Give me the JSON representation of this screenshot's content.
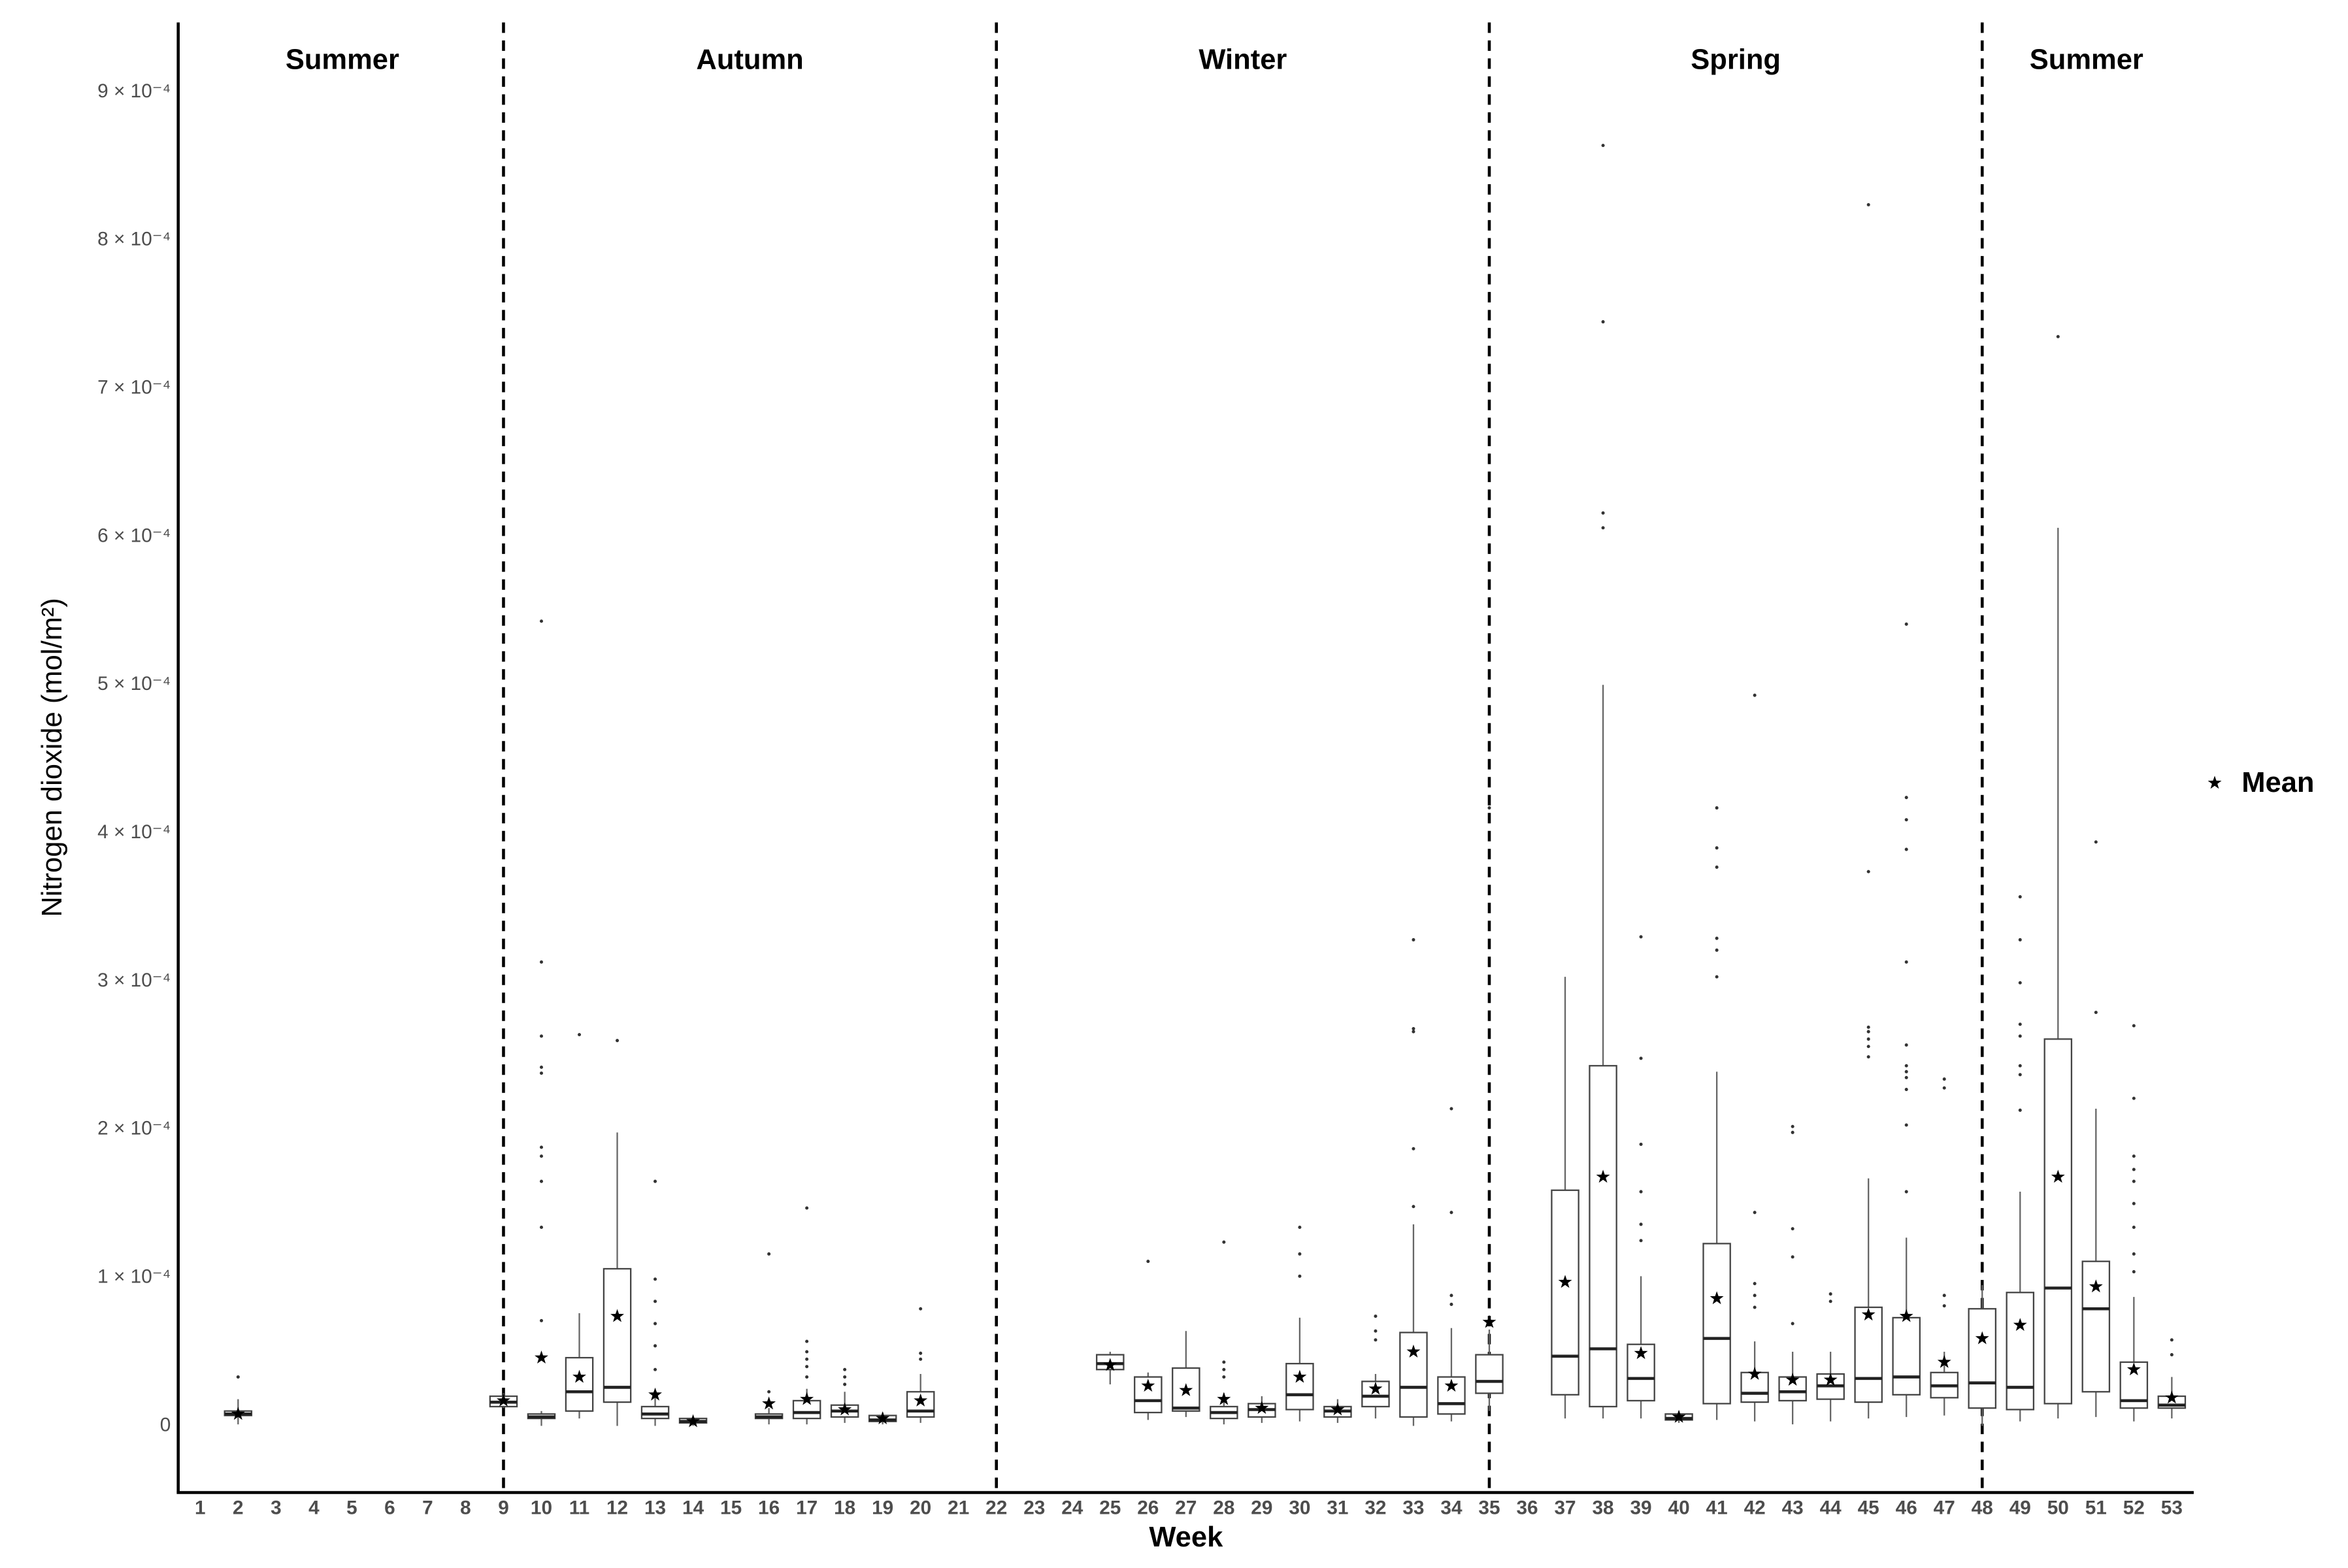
{
  "chart_data": {
    "type": "boxplot",
    "seasons": [
      "Summer",
      "Autumn",
      "Winter",
      "Spring",
      "Summer"
    ],
    "dividers": [
      9,
      22,
      35,
      48
    ],
    "x_label": "Week",
    "y_label": "Nitrogen dioxide (mol/m²)",
    "legend_label": "Mean",
    "xlim": [
      0.5,
      53.5
    ],
    "xticks": [
      1,
      2,
      3,
      4,
      5,
      6,
      7,
      8,
      9,
      10,
      11,
      12,
      13,
      14,
      15,
      16,
      17,
      18,
      19,
      20,
      21,
      22,
      23,
      24,
      25,
      26,
      27,
      28,
      29,
      30,
      31,
      32,
      33,
      34,
      35,
      36,
      37,
      38,
      39,
      40,
      41,
      42,
      43,
      44,
      45,
      46,
      47,
      48,
      49,
      50,
      51,
      52,
      53
    ],
    "ylim": [
      -4.5e-05,
      0.000947
    ],
    "yticks": [
      0,
      {
        "value": 0.0001,
        "label": "1 × 10⁻⁴"
      },
      {
        "value": 0.0002,
        "label": "2 × 10⁻⁴"
      },
      {
        "value": 0.0003,
        "label": "3 × 10⁻⁴"
      },
      {
        "value": 0.0004,
        "label": "4 × 10⁻⁴"
      },
      {
        "value": 0.0005,
        "label": "5 × 10⁻⁴"
      },
      {
        "value": 0.0006,
        "label": "6 × 10⁻⁴"
      },
      {
        "value": 0.0007,
        "label": "7 × 10⁻⁴"
      },
      {
        "value": 0.0008,
        "label": "8 × 10⁻⁴"
      },
      {
        "value": 0.0009,
        "label": "9 × 10⁻⁴"
      }
    ],
    "boxes": [
      {
        "x": 2,
        "low": 1e-06,
        "q1": 7e-06,
        "median": 8e-06,
        "q3": 1e-05,
        "high": 1.8e-05,
        "mean": 8e-06,
        "outliers": [
          3.3e-05
        ]
      },
      {
        "x": 9,
        "low": 1.2e-05,
        "q1": 1.3e-05,
        "median": 1.6e-05,
        "q3": 2e-05,
        "high": 2.2e-05,
        "mean": 1.7e-05,
        "outliers": []
      },
      {
        "x": 10,
        "low": 0,
        "q1": 5e-06,
        "median": 6e-06,
        "q3": 8e-06,
        "high": 1e-05,
        "mean": 4.6e-05,
        "outliers": [
          0.000543,
          0.000313,
          0.000263,
          0.000242,
          0.000238,
          0.000188,
          0.000182,
          0.000165,
          0.000134,
          7.1e-05
        ]
      },
      {
        "x": 11,
        "low": 5e-06,
        "q1": 1e-05,
        "median": 2.3e-05,
        "q3": 4.6e-05,
        "high": 7.6e-05,
        "mean": 3.3e-05,
        "outliers": [
          0.000264
        ]
      },
      {
        "x": 12,
        "low": 0,
        "q1": 1.6e-05,
        "median": 2.6e-05,
        "q3": 0.000106,
        "high": 0.000198,
        "mean": 7.4e-05,
        "outliers": [
          0.00026
        ]
      },
      {
        "x": 13,
        "low": 0,
        "q1": 5e-06,
        "median": 8e-06,
        "q3": 1.3e-05,
        "high": 2.3e-05,
        "mean": 2.1e-05,
        "outliers": [
          0.000165,
          9.9e-05,
          8.4e-05,
          6.9e-05,
          5.4e-05,
          3.8e-05
        ]
      },
      {
        "x": 14,
        "low": 0,
        "q1": 2e-06,
        "median": 3e-06,
        "q3": 5e-06,
        "high": 6e-06,
        "mean": 3e-06,
        "outliers": []
      },
      {
        "x": 16,
        "low": 1e-06,
        "q1": 5e-06,
        "median": 6e-06,
        "q3": 8e-06,
        "high": 1.2e-05,
        "mean": 1.5e-05,
        "outliers": [
          0.000116,
          2.3e-05
        ]
      },
      {
        "x": 17,
        "low": 1e-06,
        "q1": 5e-06,
        "median": 9e-06,
        "q3": 1.7e-05,
        "high": 2.5e-05,
        "mean": 1.8e-05,
        "outliers": [
          0.000147,
          5.7e-05,
          5e-05,
          4.5e-05,
          4e-05,
          3.3e-05
        ]
      },
      {
        "x": 18,
        "low": 2e-06,
        "q1": 6e-06,
        "median": 1e-05,
        "q3": 1.4e-05,
        "high": 2.3e-05,
        "mean": 1.1e-05,
        "outliers": [
          3.8e-05,
          3.3e-05,
          2.8e-05
        ]
      },
      {
        "x": 19,
        "low": 1e-06,
        "q1": 3e-06,
        "median": 4e-06,
        "q3": 7e-06,
        "high": 9e-06,
        "mean": 5e-06,
        "outliers": []
      },
      {
        "x": 20,
        "low": 2e-06,
        "q1": 6e-06,
        "median": 1e-05,
        "q3": 2.3e-05,
        "high": 3.5e-05,
        "mean": 1.7e-05,
        "outliers": [
          7.9e-05,
          4.9e-05,
          4.5e-05
        ]
      },
      {
        "x": 25,
        "low": 2.8e-05,
        "q1": 3.8e-05,
        "median": 4.2e-05,
        "q3": 4.8e-05,
        "high": 5e-05,
        "mean": 4.1e-05,
        "outliers": []
      },
      {
        "x": 26,
        "low": 4e-06,
        "q1": 9e-06,
        "median": 1.7e-05,
        "q3": 3.3e-05,
        "high": 3.6e-05,
        "mean": 2.7e-05,
        "outliers": [
          0.000111
        ]
      },
      {
        "x": 27,
        "low": 6e-06,
        "q1": 1e-05,
        "median": 1.2e-05,
        "q3": 3.9e-05,
        "high": 6.4e-05,
        "mean": 2.4e-05,
        "outliers": []
      },
      {
        "x": 28,
        "low": 1e-06,
        "q1": 5e-06,
        "median": 9e-06,
        "q3": 1.3e-05,
        "high": 2.2e-05,
        "mean": 1.8e-05,
        "outliers": [
          0.000124,
          4.3e-05,
          3.8e-05,
          3.3e-05
        ]
      },
      {
        "x": 29,
        "low": 2e-06,
        "q1": 6e-06,
        "median": 1.1e-05,
        "q3": 1.5e-05,
        "high": 2e-05,
        "mean": 1.2e-05,
        "outliers": []
      },
      {
        "x": 30,
        "low": 3e-06,
        "q1": 1.1e-05,
        "median": 2.1e-05,
        "q3": 4.2e-05,
        "high": 7.3e-05,
        "mean": 3.3e-05,
        "outliers": [
          0.000134,
          0.000116,
          0.000101
        ]
      },
      {
        "x": 31,
        "low": 2e-06,
        "q1": 6e-06,
        "median": 1e-05,
        "q3": 1.3e-05,
        "high": 1.8e-05,
        "mean": 1.1e-05,
        "outliers": []
      },
      {
        "x": 32,
        "low": 5e-06,
        "q1": 1.3e-05,
        "median": 2e-05,
        "q3": 3e-05,
        "high": 3.5e-05,
        "mean": 2.5e-05,
        "outliers": [
          7.4e-05,
          6.4e-05,
          5.8e-05
        ]
      },
      {
        "x": 33,
        "low": 0,
        "q1": 6e-06,
        "median": 2.6e-05,
        "q3": 6.3e-05,
        "high": 0.000136,
        "mean": 5e-05,
        "outliers": [
          0.000328,
          0.000268,
          0.000266,
          0.000187,
          0.000148
        ]
      },
      {
        "x": 34,
        "low": 3e-06,
        "q1": 8e-06,
        "median": 1.5e-05,
        "q3": 3.3e-05,
        "high": 6.6e-05,
        "mean": 2.7e-05,
        "outliers": [
          0.000214,
          0.000144,
          8.8e-05,
          8.2e-05
        ]
      },
      {
        "x": 35,
        "low": 1e-05,
        "q1": 2.2e-05,
        "median": 3e-05,
        "q3": 4.8e-05,
        "high": 6.5e-05,
        "mean": 7e-05,
        "outliers": [
          0.000417
        ]
      },
      {
        "x": 37,
        "low": 5e-06,
        "q1": 2.1e-05,
        "median": 4.7e-05,
        "q3": 0.000159,
        "high": 0.000303,
        "mean": 9.7e-05,
        "outliers": []
      },
      {
        "x": 38,
        "low": 5e-06,
        "q1": 1.3e-05,
        "median": 5.2e-05,
        "q3": 0.000243,
        "high": 0.0005,
        "mean": 0.000168,
        "outliers": [
          0.000864,
          0.000745,
          0.000616,
          0.000606
        ]
      },
      {
        "x": 39,
        "low": 5e-06,
        "q1": 1.7e-05,
        "median": 3.2e-05,
        "q3": 5.5e-05,
        "high": 0.000101,
        "mean": 4.9e-05,
        "outliers": [
          0.00033,
          0.000248,
          0.00019,
          0.000158,
          0.000136,
          0.000125
        ]
      },
      {
        "x": 40,
        "low": 2e-06,
        "q1": 4e-06,
        "median": 5e-06,
        "q3": 8e-06,
        "high": 1e-05,
        "mean": 6e-06,
        "outliers": []
      },
      {
        "x": 41,
        "low": 4e-06,
        "q1": 1.5e-05,
        "median": 5.9e-05,
        "q3": 0.000123,
        "high": 0.000239,
        "mean": 8.6e-05,
        "outliers": [
          0.000417,
          0.00039,
          0.000377,
          0.000329,
          0.000321,
          0.000303
        ]
      },
      {
        "x": 42,
        "low": 3e-06,
        "q1": 1.6e-05,
        "median": 2.2e-05,
        "q3": 3.6e-05,
        "high": 5.7e-05,
        "mean": 3.5e-05,
        "outliers": [
          0.000493,
          0.000144,
          9.6e-05,
          8.8e-05,
          8e-05
        ]
      },
      {
        "x": 43,
        "low": 1e-06,
        "q1": 1.7e-05,
        "median": 2.3e-05,
        "q3": 3.3e-05,
        "high": 5e-05,
        "mean": 3.1e-05,
        "outliers": [
          0.000202,
          0.000198,
          0.000133,
          0.000114,
          6.9e-05
        ]
      },
      {
        "x": 44,
        "low": 3e-06,
        "q1": 1.8e-05,
        "median": 2.7e-05,
        "q3": 3.5e-05,
        "high": 5e-05,
        "mean": 3.1e-05,
        "outliers": [
          8.9e-05,
          8.4e-05
        ]
      },
      {
        "x": 45,
        "low": 5e-06,
        "q1": 1.6e-05,
        "median": 3.2e-05,
        "q3": 8e-05,
        "high": 0.000167,
        "mean": 7.5e-05,
        "outliers": [
          0.000824,
          0.000374,
          0.000269,
          0.000266,
          0.000261,
          0.000256,
          0.000249
        ]
      },
      {
        "x": 46,
        "low": 6e-06,
        "q1": 2.1e-05,
        "median": 3.3e-05,
        "q3": 7.3e-05,
        "high": 0.000127,
        "mean": 7.4e-05,
        "outliers": [
          0.000541,
          0.000424,
          0.000409,
          0.000389,
          0.000313,
          0.000257,
          0.000243,
          0.000239,
          0.000235,
          0.000227,
          0.000203,
          0.000158
        ]
      },
      {
        "x": 47,
        "low": 7e-06,
        "q1": 1.9e-05,
        "median": 2.7e-05,
        "q3": 3.6e-05,
        "high": 5e-05,
        "mean": 4.3e-05,
        "outliers": [
          0.000234,
          0.000228,
          8.8e-05,
          8.1e-05
        ]
      },
      {
        "x": 48,
        "low": 0,
        "q1": 1.2e-05,
        "median": 2.9e-05,
        "q3": 7.9e-05,
        "high": 9.5e-05,
        "mean": 5.9e-05,
        "outliers": []
      },
      {
        "x": 49,
        "low": 3e-06,
        "q1": 1.1e-05,
        "median": 2.6e-05,
        "q3": 9e-05,
        "high": 0.000158,
        "mean": 6.8e-05,
        "outliers": [
          0.000357,
          0.000328,
          0.000299,
          0.000271,
          0.000263,
          0.000243,
          0.000237,
          0.000213
        ]
      },
      {
        "x": 50,
        "low": 5e-06,
        "q1": 1.5e-05,
        "median": 9.3e-05,
        "q3": 0.000261,
        "high": 0.000606,
        "mean": 0.000168,
        "outliers": [
          0.000735
        ]
      },
      {
        "x": 51,
        "low": 6e-06,
        "q1": 2.3e-05,
        "median": 7.9e-05,
        "q3": 0.000111,
        "high": 0.000214,
        "mean": 9.4e-05,
        "outliers": [
          0.000394,
          0.000279
        ]
      },
      {
        "x": 52,
        "low": 3e-06,
        "q1": 1.2e-05,
        "median": 1.7e-05,
        "q3": 4.3e-05,
        "high": 8.7e-05,
        "mean": 3.8e-05,
        "outliers": [
          0.00027,
          0.000221,
          0.000182,
          0.000173,
          0.000165,
          0.00015,
          0.000134,
          0.000116,
          0.000104
        ]
      },
      {
        "x": 53,
        "low": 5e-06,
        "q1": 1.2e-05,
        "median": 1.4e-05,
        "q3": 2e-05,
        "high": 3.3e-05,
        "mean": 1.9e-05,
        "outliers": [
          5.8e-05,
          4.8e-05
        ]
      }
    ]
  }
}
